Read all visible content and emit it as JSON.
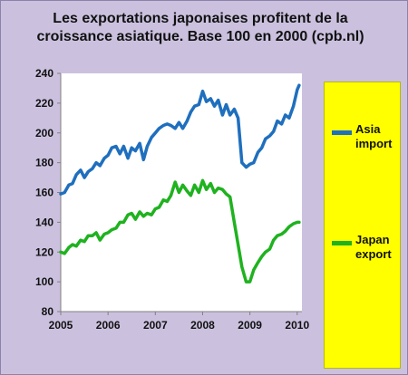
{
  "chart_data": {
    "type": "line",
    "title": "Les exportations japonaises profitent de la croissance asiatique. Base 100 en 2000 (cpb.nl)",
    "xlabel": "",
    "ylabel": "",
    "xlim": [
      2005,
      2010.1
    ],
    "ylim": [
      80,
      240
    ],
    "y_ticks": [
      80,
      100,
      120,
      140,
      160,
      180,
      200,
      220,
      240
    ],
    "x_ticks": [
      "2005",
      "2006",
      "2007",
      "2008",
      "2009",
      "2010"
    ],
    "grid": false,
    "legend_position": "right",
    "colors": {
      "Asia import": "#1f6fbe",
      "Japan export": "#1fb21f",
      "legend_bg": "#ffff00",
      "frame_bg": "#cbc1df"
    },
    "series": [
      {
        "name": "Asia import",
        "legend_label": "Asia\nimport",
        "x": [
          2005.0,
          2005.08,
          2005.17,
          2005.25,
          2005.33,
          2005.42,
          2005.5,
          2005.58,
          2005.67,
          2005.75,
          2005.83,
          2005.92,
          2006.0,
          2006.08,
          2006.17,
          2006.25,
          2006.33,
          2006.42,
          2006.5,
          2006.58,
          2006.67,
          2006.75,
          2006.83,
          2006.92,
          2007.0,
          2007.08,
          2007.17,
          2007.25,
          2007.33,
          2007.42,
          2007.5,
          2007.58,
          2007.67,
          2007.75,
          2007.83,
          2007.92,
          2008.0,
          2008.08,
          2008.17,
          2008.25,
          2008.33,
          2008.42,
          2008.5,
          2008.58,
          2008.67,
          2008.75,
          2008.83,
          2008.92,
          2009.0,
          2009.08,
          2009.17,
          2009.25,
          2009.33,
          2009.42,
          2009.5,
          2009.58,
          2009.67,
          2009.75,
          2009.83,
          2009.92,
          2010.0,
          2010.04
        ],
        "values": [
          159,
          160,
          165,
          166,
          172,
          175,
          170,
          174,
          176,
          180,
          178,
          183,
          185,
          190,
          191,
          186,
          191,
          183,
          190,
          188,
          193,
          182,
          191,
          197,
          200,
          203,
          205,
          206,
          205,
          203,
          207,
          203,
          208,
          214,
          218,
          219,
          228,
          221,
          223,
          218,
          222,
          212,
          219,
          212,
          216,
          210,
          180,
          177,
          179,
          180,
          187,
          190,
          196,
          198,
          201,
          208,
          206,
          212,
          210,
          218,
          229,
          232
        ]
      },
      {
        "name": "Japan export",
        "legend_label": "Japan\nexport",
        "x": [
          2005.0,
          2005.08,
          2005.17,
          2005.25,
          2005.33,
          2005.42,
          2005.5,
          2005.58,
          2005.67,
          2005.75,
          2005.83,
          2005.92,
          2006.0,
          2006.08,
          2006.17,
          2006.25,
          2006.33,
          2006.42,
          2006.5,
          2006.58,
          2006.67,
          2006.75,
          2006.83,
          2006.92,
          2007.0,
          2007.08,
          2007.17,
          2007.25,
          2007.33,
          2007.42,
          2007.5,
          2007.58,
          2007.67,
          2007.75,
          2007.83,
          2007.92,
          2008.0,
          2008.08,
          2008.17,
          2008.25,
          2008.33,
          2008.42,
          2008.5,
          2008.58,
          2008.67,
          2008.75,
          2008.83,
          2008.92,
          2009.0,
          2009.08,
          2009.17,
          2009.25,
          2009.33,
          2009.42,
          2009.5,
          2009.58,
          2009.67,
          2009.75,
          2009.83,
          2009.92,
          2010.0,
          2010.04
        ],
        "values": [
          120,
          119,
          123,
          125,
          124,
          128,
          127,
          131,
          131,
          133,
          128,
          132,
          133,
          135,
          136,
          140,
          140,
          145,
          146,
          142,
          147,
          144,
          146,
          145,
          149,
          150,
          155,
          154,
          158,
          167,
          160,
          165,
          161,
          158,
          165,
          160,
          168,
          162,
          166,
          160,
          163,
          162,
          159,
          157,
          140,
          125,
          110,
          100,
          100,
          108,
          113,
          117,
          120,
          122,
          128,
          131,
          132,
          134,
          137,
          139,
          140,
          140
        ]
      }
    ]
  }
}
